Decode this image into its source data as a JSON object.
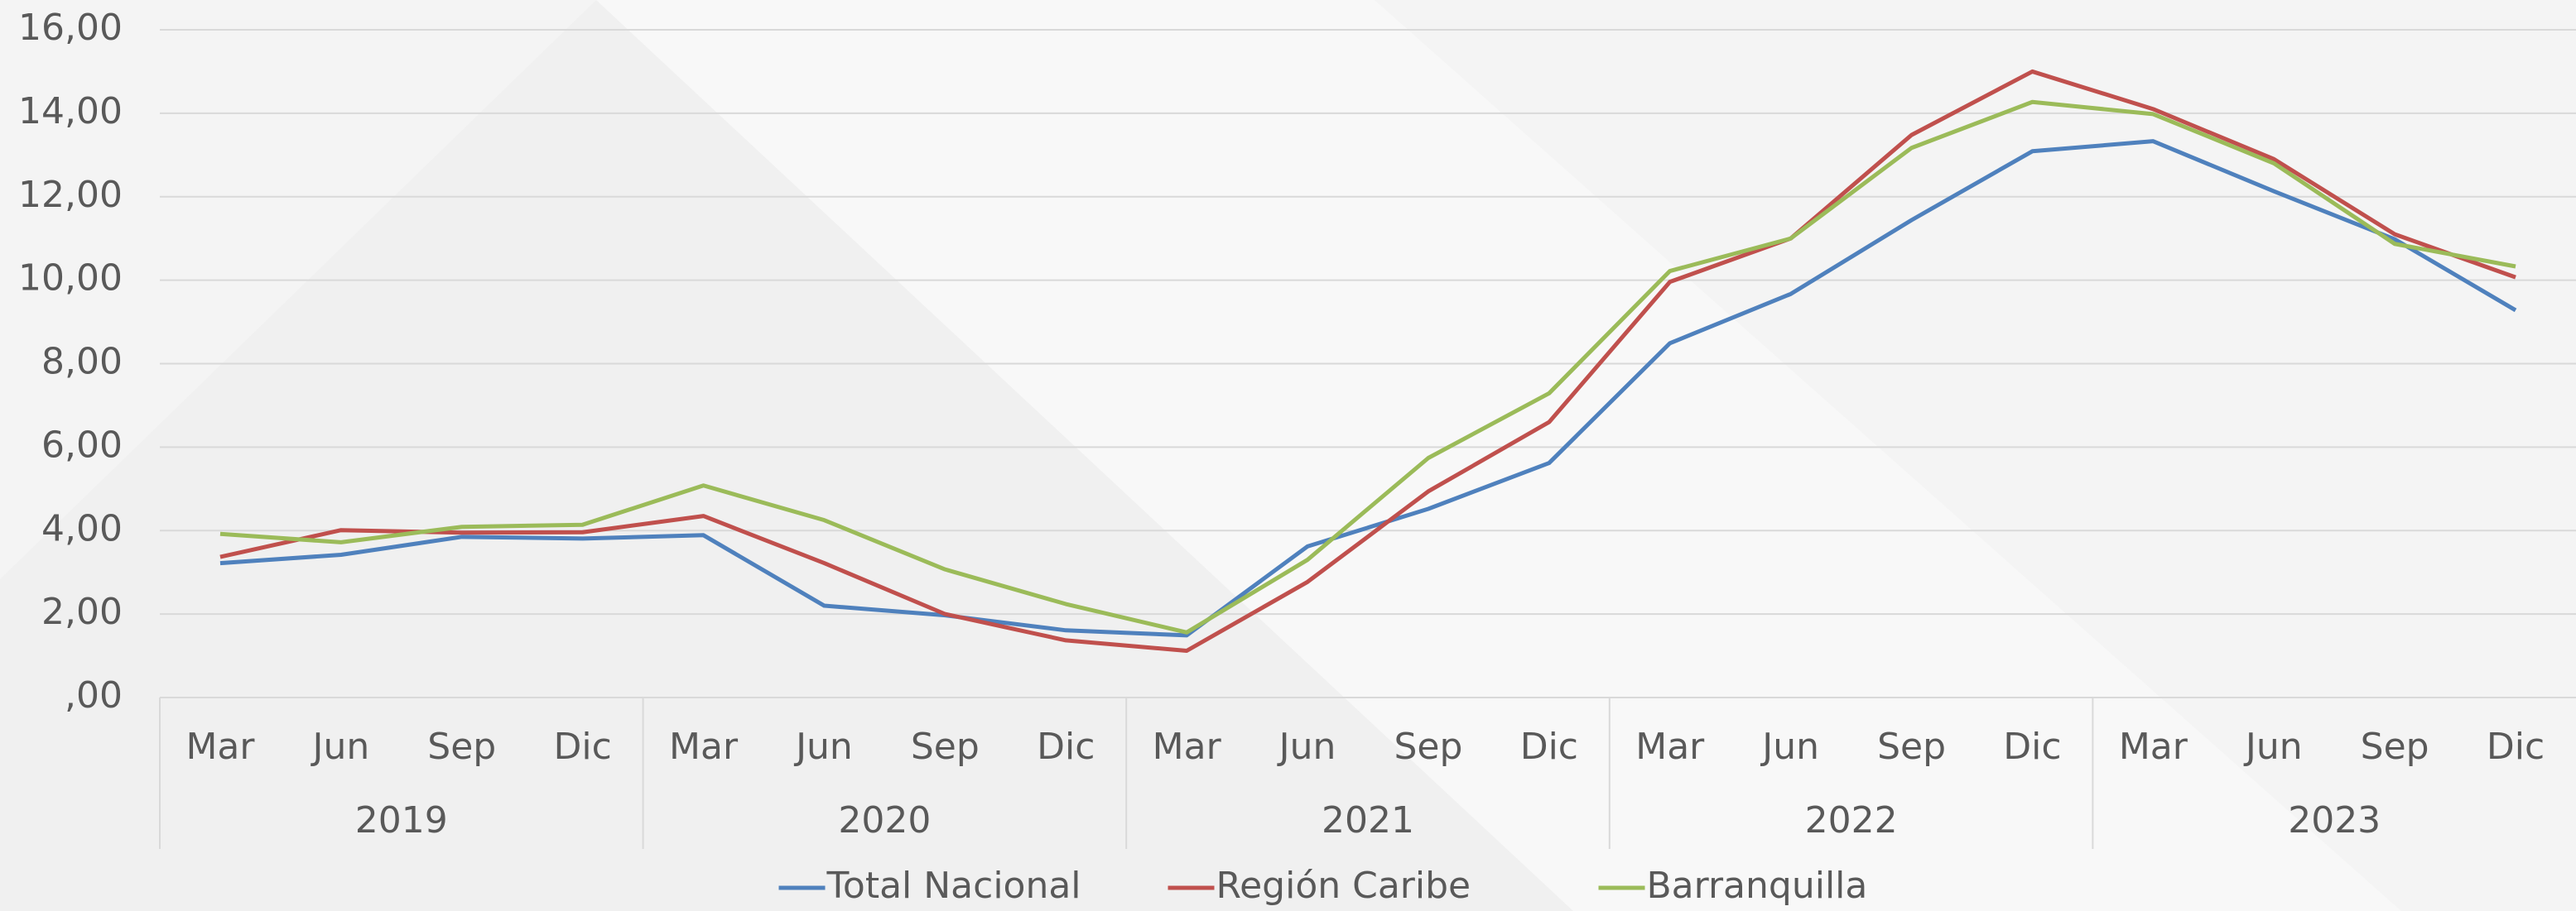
{
  "chart_data": {
    "type": "line",
    "categories": [
      "Mar",
      "Jun",
      "Sep",
      "Dic",
      "Mar",
      "Jun",
      "Sep",
      "Dic",
      "Mar",
      "Jun",
      "Sep",
      "Dic",
      "Mar",
      "Jun",
      "Sep",
      "Dic",
      "Mar",
      "Jun",
      "Sep",
      "Dic"
    ],
    "year_groups": [
      "2019",
      "2020",
      "2021",
      "2022",
      "2023"
    ],
    "series": [
      {
        "name": "Total Nacional",
        "color": "#4f81bd",
        "values": [
          3.22,
          3.42,
          3.85,
          3.81,
          3.89,
          2.2,
          1.97,
          1.61,
          1.49,
          3.62,
          4.52,
          5.62,
          8.49,
          9.67,
          11.44,
          13.09,
          13.33,
          12.13,
          10.98,
          9.28
        ]
      },
      {
        "name": "Región Caribe",
        "color": "#c0504d",
        "values": [
          3.37,
          4.01,
          3.95,
          3.96,
          4.35,
          3.22,
          2.0,
          1.37,
          1.12,
          2.77,
          4.94,
          6.6,
          9.96,
          11.0,
          13.48,
          15.0,
          14.1,
          12.9,
          11.1,
          10.07
        ]
      },
      {
        "name": "Barranquilla",
        "color": "#9bbb59",
        "values": [
          3.92,
          3.72,
          4.09,
          4.14,
          5.08,
          4.25,
          3.07,
          2.24,
          1.56,
          3.3,
          5.74,
          7.29,
          10.22,
          11.0,
          13.17,
          14.27,
          13.98,
          12.8,
          10.87,
          10.33
        ]
      }
    ],
    "ylim": [
      0,
      16
    ],
    "yticks": [
      {
        "value": 0,
        "label": ",00"
      },
      {
        "value": 2,
        "label": "2,00"
      },
      {
        "value": 4,
        "label": "4,00"
      },
      {
        "value": 6,
        "label": "6,00"
      },
      {
        "value": 8,
        "label": "8,00"
      },
      {
        "value": 10,
        "label": "10,00"
      },
      {
        "value": 12,
        "label": "12,00"
      },
      {
        "value": 14,
        "label": "14,00"
      },
      {
        "value": 16,
        "label": "16,00"
      }
    ],
    "grid": true,
    "legend": "bottom"
  }
}
